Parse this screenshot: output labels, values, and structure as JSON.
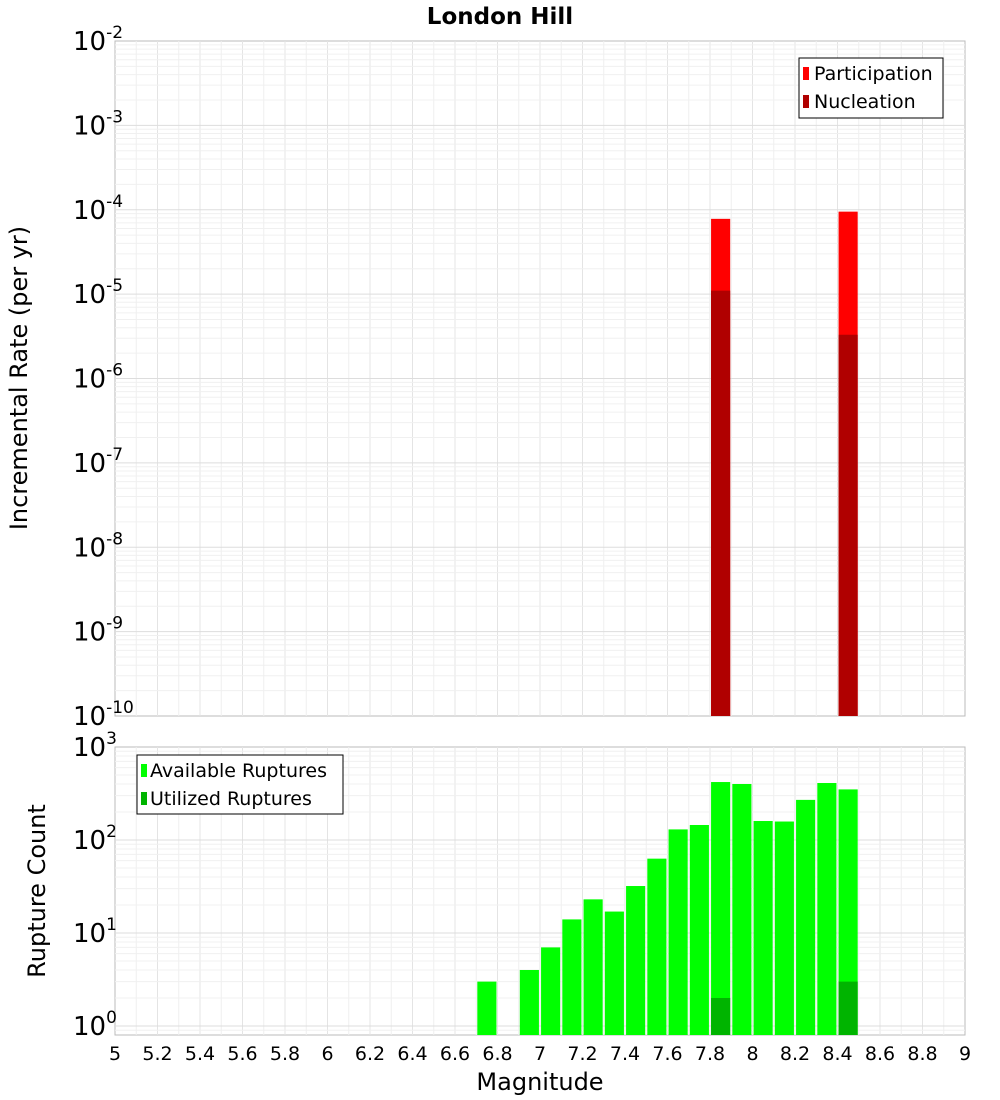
{
  "title": "London Hill",
  "xlabel": "Magnitude",
  "x_ticks": [
    "5",
    "5.2",
    "5.4",
    "5.6",
    "5.8",
    "6",
    "6.2",
    "6.4",
    "6.6",
    "6.8",
    "7",
    "7.2",
    "7.4",
    "7.6",
    "7.8",
    "8",
    "8.2",
    "8.4",
    "8.6",
    "8.8",
    "9"
  ],
  "chart_data": [
    {
      "type": "bar",
      "ylabel": "Incremental Rate (per yr)",
      "yscale": "log",
      "xlim": [
        5,
        9
      ],
      "ylim": [
        1e-10,
        0.01
      ],
      "y_tick_exponents": [
        "-2",
        "-3",
        "-4",
        "-5",
        "-6",
        "-7",
        "-8",
        "-9",
        "-10"
      ],
      "grid": true,
      "legend_position": "top-right",
      "bar_width": 0.09,
      "series": [
        {
          "name": "Participation",
          "color": "#ff0000",
          "x": [
            7.85,
            8.45
          ],
          "values": [
            7.8e-05,
            9.5e-05
          ]
        },
        {
          "name": "Nucleation",
          "color": "#b00000",
          "x": [
            7.85,
            8.45
          ],
          "values": [
            1.1e-05,
            3.3e-06
          ]
        }
      ]
    },
    {
      "type": "bar",
      "ylabel": "Rupture Count",
      "yscale": "log",
      "xlim": [
        5,
        9
      ],
      "ylim": [
        0.8,
        1000
      ],
      "y_tick_exponents": [
        "3",
        "2",
        "1",
        "0"
      ],
      "grid": true,
      "legend_position": "top-left",
      "bar_width": 0.09,
      "series": [
        {
          "name": "Available Ruptures",
          "color": "#00ff00",
          "x": [
            6.75,
            6.95,
            7.05,
            7.15,
            7.25,
            7.35,
            7.45,
            7.55,
            7.65,
            7.75,
            7.85,
            7.95,
            8.05,
            8.15,
            8.25,
            8.35,
            8.45
          ],
          "values": [
            3,
            4,
            7,
            14,
            23,
            17,
            32,
            63,
            130,
            145,
            420,
            400,
            160,
            158,
            270,
            410,
            350
          ]
        },
        {
          "name": "Utilized Ruptures",
          "color": "#00b400",
          "x": [
            7.85,
            8.45
          ],
          "values": [
            2,
            3
          ]
        }
      ]
    }
  ]
}
